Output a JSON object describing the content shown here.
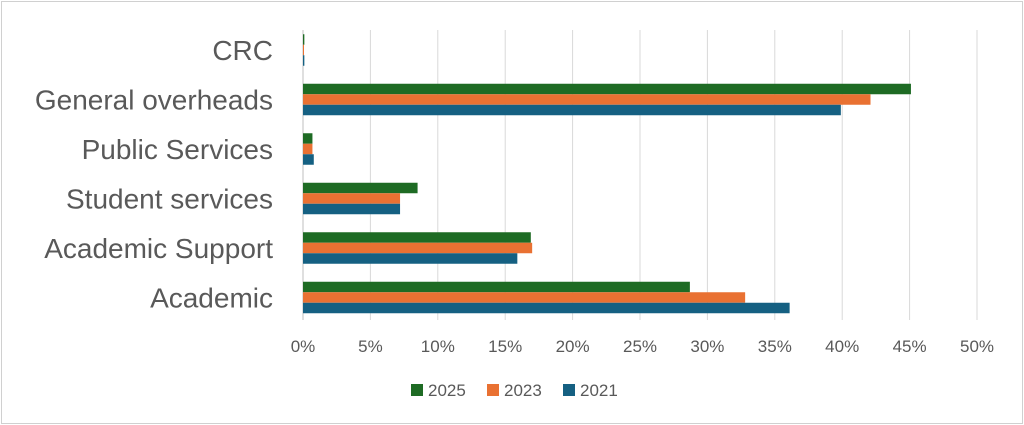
{
  "chart_data": {
    "type": "bar",
    "orientation": "horizontal",
    "title": "",
    "xlabel": "",
    "ylabel": "",
    "categories": [
      "CRC",
      "General overheads",
      "Public Services",
      "Student services",
      "Academic Support",
      "Academic"
    ],
    "series": [
      {
        "name": "2025",
        "color": "#1e6b24",
        "values": [
          0.1,
          45.1,
          0.7,
          8.5,
          16.9,
          28.7
        ]
      },
      {
        "name": "2023",
        "color": "#e97132",
        "values": [
          0.0,
          42.1,
          0.7,
          7.2,
          17.0,
          32.8
        ]
      },
      {
        "name": "2021",
        "color": "#156082",
        "values": [
          0.1,
          39.9,
          0.8,
          7.2,
          15.9,
          36.1
        ]
      }
    ],
    "xlim": [
      0,
      50
    ],
    "xticks": [
      "0%",
      "5%",
      "10%",
      "15%",
      "20%",
      "25%",
      "30%",
      "35%",
      "40%",
      "45%",
      "50%"
    ],
    "grid": "vertical",
    "legend": "bottom"
  }
}
